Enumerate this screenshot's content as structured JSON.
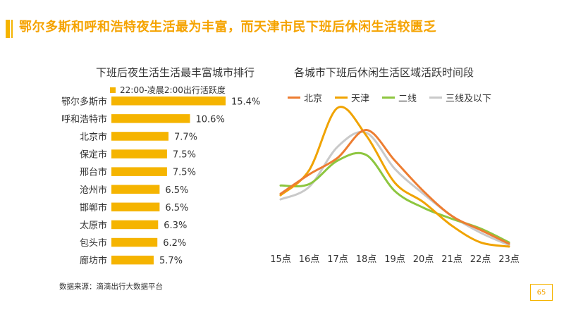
{
  "page_title": "鄂尔多斯和呼和浩特夜生活最为丰富，而天津市民下班后休闲生活较匮乏",
  "source": "数据来源：滴滴出行大数据平台",
  "page_number": "65",
  "colors": {
    "accent": "#f5b400",
    "beijing": "#ed7d31",
    "tianjin": "#f0a300",
    "erxian": "#8dc63f",
    "sanxian": "#c9c9c9"
  },
  "chart_data": [
    {
      "type": "bar",
      "orientation": "horizontal",
      "title": "下班后夜生活生活最丰富城市排行",
      "legend": "22:00-凌晨2:00出行活跃度",
      "categories": [
        "鄂尔多斯市",
        "呼和浩特市",
        "北京市",
        "保定市",
        "邢台市",
        "沧州市",
        "邯郸市",
        "太原市",
        "包头市",
        "廊坊市"
      ],
      "values": [
        15.4,
        10.6,
        7.7,
        7.5,
        7.5,
        6.5,
        6.5,
        6.3,
        6.2,
        5.7
      ],
      "value_labels": [
        "15.4%",
        "10.6%",
        "7.7%",
        "7.5%",
        "7.5%",
        "6.5%",
        "6.5%",
        "6.3%",
        "6.2%",
        "5.7%"
      ],
      "unit": "%",
      "xlim": [
        0,
        16
      ]
    },
    {
      "type": "line",
      "smooth": true,
      "title": "各城市下班后休闲生活区域活跃时间段",
      "categories": [
        "15点",
        "16点",
        "17点",
        "18点",
        "19点",
        "20点",
        "21点",
        "22点",
        "23点"
      ],
      "ylim": [
        0,
        100
      ],
      "series": [
        {
          "name": "北京",
          "colorKey": "beijing",
          "values": [
            38,
            52,
            64,
            84,
            62,
            40,
            22,
            12,
            2
          ]
        },
        {
          "name": "天津",
          "colorKey": "tianjin",
          "values": [
            37,
            55,
            100,
            80,
            46,
            32,
            15,
            3,
            0
          ]
        },
        {
          "name": "二线",
          "colorKey": "erxian",
          "values": [
            44,
            45,
            62,
            66,
            40,
            28,
            20,
            13,
            3
          ]
        },
        {
          "name": "三线及以下",
          "colorKey": "sanxian",
          "values": [
            34,
            43,
            72,
            82,
            56,
            38,
            22,
            10,
            1
          ]
        }
      ]
    }
  ]
}
